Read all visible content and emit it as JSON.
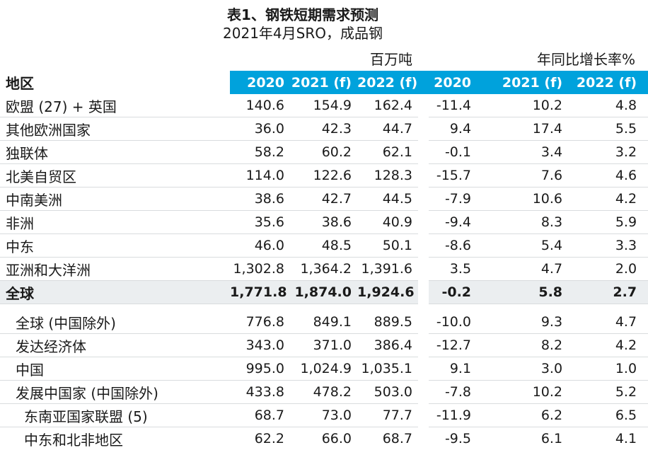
{
  "title": "表1、钢铁短期需求预测",
  "subtitle": "2021年4月SRO，成品钢",
  "table": {
    "region_header": "地区",
    "unit_tonnes": "百万吨",
    "unit_growth": "年同比增长率%",
    "year_headers": [
      "2020",
      "2021 (f)",
      "2022 (f)"
    ],
    "colors": {
      "header_bg": "#00A2DC",
      "header_text": "#FFFFFF",
      "highlight_row_bg": "#EBEEF0",
      "row_divider": "#D9DCDE"
    },
    "rows": [
      {
        "region": "欧盟 (27) + 英国",
        "indent": 0,
        "bold": false,
        "highlight": false,
        "spacer_after": false,
        "tonnes": [
          "140.6",
          "154.9",
          "162.4"
        ],
        "growth": [
          "-11.4",
          "10.2",
          "4.8"
        ]
      },
      {
        "region": "其他欧洲国家",
        "indent": 0,
        "bold": false,
        "highlight": false,
        "spacer_after": false,
        "tonnes": [
          "36.0",
          "42.3",
          "44.7"
        ],
        "growth": [
          "9.4",
          "17.4",
          "5.5"
        ]
      },
      {
        "region": "独联体",
        "indent": 0,
        "bold": false,
        "highlight": false,
        "spacer_after": false,
        "tonnes": [
          "58.2",
          "60.2",
          "62.1"
        ],
        "growth": [
          "-0.1",
          "3.4",
          "3.2"
        ]
      },
      {
        "region": "北美自贸区",
        "indent": 0,
        "bold": false,
        "highlight": false,
        "spacer_after": false,
        "tonnes": [
          "114.0",
          "122.6",
          "128.3"
        ],
        "growth": [
          "-15.7",
          "7.6",
          "4.6"
        ]
      },
      {
        "region": "中南美洲",
        "indent": 0,
        "bold": false,
        "highlight": false,
        "spacer_after": false,
        "tonnes": [
          "38.6",
          "42.7",
          "44.5"
        ],
        "growth": [
          "-7.9",
          "10.6",
          "4.2"
        ]
      },
      {
        "region": "非洲",
        "indent": 0,
        "bold": false,
        "highlight": false,
        "spacer_after": false,
        "tonnes": [
          "35.6",
          "38.6",
          "40.9"
        ],
        "growth": [
          "-9.4",
          "8.3",
          "5.9"
        ]
      },
      {
        "region": "中东",
        "indent": 0,
        "bold": false,
        "highlight": false,
        "spacer_after": false,
        "tonnes": [
          "46.0",
          "48.5",
          "50.1"
        ],
        "growth": [
          "-8.6",
          "5.4",
          "3.3"
        ]
      },
      {
        "region": "亚洲和大洋洲",
        "indent": 0,
        "bold": false,
        "highlight": false,
        "spacer_after": false,
        "tonnes": [
          "1,302.8",
          "1,364.2",
          "1,391.6"
        ],
        "growth": [
          "3.5",
          "4.7",
          "2.0"
        ]
      },
      {
        "region": "全球",
        "indent": 0,
        "bold": true,
        "highlight": true,
        "spacer_after": true,
        "tonnes": [
          "1,771.8",
          "1,874.0",
          "1,924.6"
        ],
        "growth": [
          "-0.2",
          "5.8",
          "2.7"
        ]
      },
      {
        "region": "全球 (中国除外)",
        "indent": 1,
        "bold": false,
        "highlight": false,
        "spacer_after": false,
        "tonnes": [
          "776.8",
          "849.1",
          "889.5"
        ],
        "growth": [
          "-10.0",
          "9.3",
          "4.7"
        ]
      },
      {
        "region": "发达经济体",
        "indent": 1,
        "bold": false,
        "highlight": false,
        "spacer_after": false,
        "tonnes": [
          "343.0",
          "371.0",
          "386.4"
        ],
        "growth": [
          "-12.7",
          "8.2",
          "4.2"
        ]
      },
      {
        "region": "中国",
        "indent": 1,
        "bold": false,
        "highlight": false,
        "spacer_after": false,
        "tonnes": [
          "995.0",
          "1,024.9",
          "1,035.1"
        ],
        "growth": [
          "9.1",
          "3.0",
          "1.0"
        ]
      },
      {
        "region": "发展中国家 (中国除外)",
        "indent": 1,
        "bold": false,
        "highlight": false,
        "spacer_after": false,
        "tonnes": [
          "433.8",
          "478.2",
          "503.0"
        ],
        "growth": [
          "-7.8",
          "10.2",
          "5.2"
        ]
      },
      {
        "region": "东南亚国家联盟 (5)",
        "indent": 2,
        "bold": false,
        "highlight": false,
        "spacer_after": false,
        "tonnes": [
          "68.7",
          "73.0",
          "77.7"
        ],
        "growth": [
          "-11.9",
          "6.2",
          "6.5"
        ]
      },
      {
        "region": "中东和北非地区",
        "indent": 2,
        "bold": false,
        "highlight": false,
        "spacer_after": false,
        "tonnes": [
          "62.2",
          "66.0",
          "68.7"
        ],
        "growth": [
          "-9.5",
          "6.1",
          "4.1"
        ]
      }
    ]
  }
}
